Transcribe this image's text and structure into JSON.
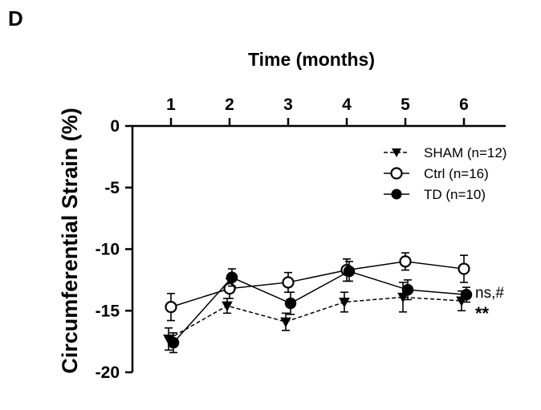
{
  "panel_label": "D",
  "chart_data": {
    "type": "line",
    "title": "Time (months)",
    "xlabel": "Time (months)",
    "ylabel": "Circumferential Strain (%)",
    "x": [
      1,
      2,
      3,
      4,
      5,
      6
    ],
    "x_ticks": [
      "1",
      "2",
      "3",
      "4",
      "5",
      "6"
    ],
    "xlim": [
      0.4,
      6.7
    ],
    "ylim": [
      -20,
      0
    ],
    "y_ticks": [
      0,
      -5,
      -10,
      -15,
      -20
    ],
    "y_tick_labels": [
      "0",
      "-5",
      "-10",
      "-15",
      "-20"
    ],
    "x_axis_position": "top",
    "grid": false,
    "legend_position": "top-right",
    "series": [
      {
        "name": "SHAM (n=12)",
        "marker": "filled-triangle-down",
        "line": "dashed",
        "color": "#000000",
        "values": [
          -17.3,
          -14.6,
          -15.9,
          -14.3,
          -13.9,
          -14.2
        ],
        "errors": [
          0.9,
          0.6,
          0.7,
          0.8,
          1.2,
          0.8
        ]
      },
      {
        "name": "Ctrl (n=16)",
        "marker": "open-circle",
        "line": "solid",
        "color": "#000000",
        "values": [
          -14.7,
          -13.2,
          -12.7,
          -11.7,
          -11.0,
          -11.6
        ],
        "errors": [
          1.1,
          0.8,
          0.8,
          0.9,
          0.7,
          1.1
        ]
      },
      {
        "name": "TD (n=10)",
        "marker": "filled-circle",
        "line": "solid",
        "color": "#000000",
        "values": [
          -17.6,
          -12.3,
          -14.4,
          -11.8,
          -13.3,
          -13.7
        ],
        "errors": [
          0.8,
          0.7,
          0.9,
          0.8,
          0.8,
          0.6
        ]
      }
    ],
    "annotations": [
      {
        "text": "ns,#",
        "x": 6,
        "y": -13.6
      },
      {
        "text": "**",
        "x": 6,
        "y": -14.8
      }
    ]
  }
}
